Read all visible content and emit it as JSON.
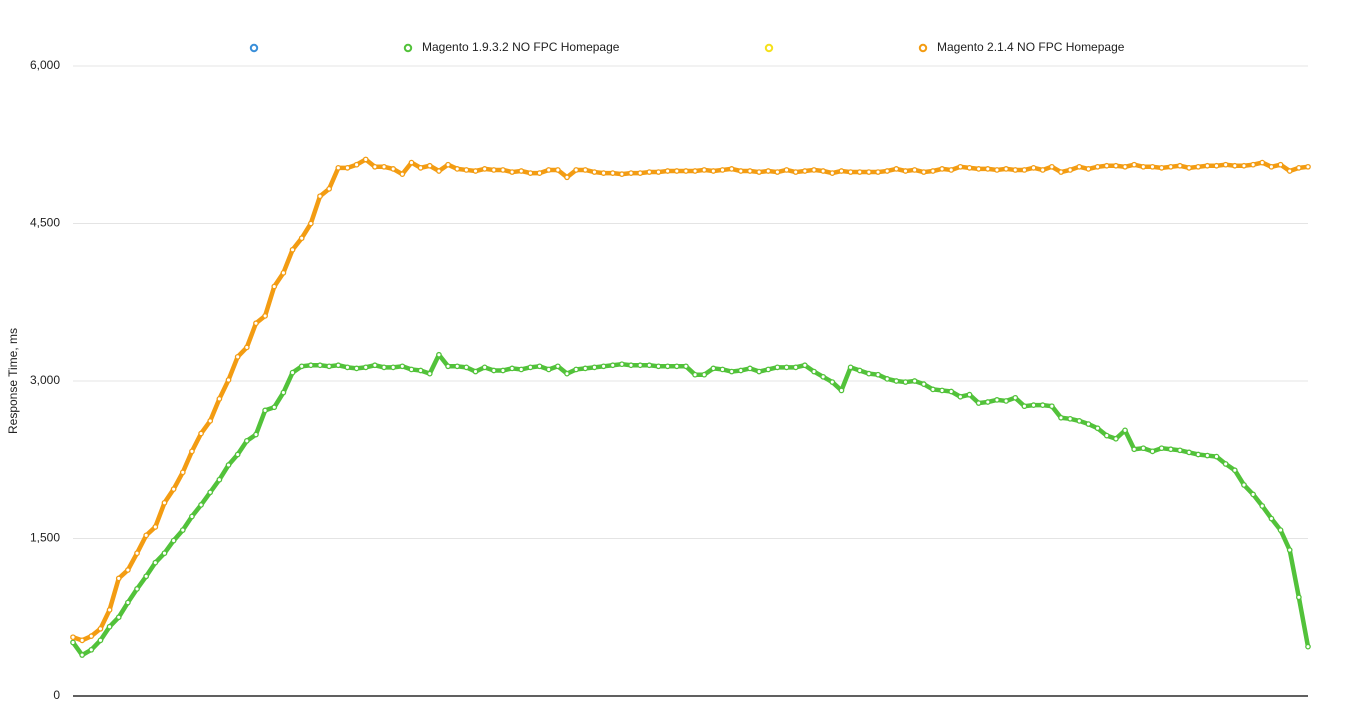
{
  "chart_data": {
    "type": "line",
    "y_label": "Response Time, ms",
    "ylim": [
      0,
      6000
    ],
    "yticks": [
      0,
      {
        "value": 1500,
        "label": "1,500"
      },
      {
        "value": 3000,
        "label": "3,000"
      },
      {
        "value": 4500,
        "label": "4,500"
      },
      {
        "value": 6000,
        "label": "6,000"
      }
    ],
    "grid": true,
    "legend": "top",
    "series": [
      {
        "name": null,
        "color": "#3a8fd9"
      },
      {
        "name": "Magento 1.9.3.2 NO FPC Homepage",
        "color": "#52c23a",
        "values": [
          510,
          390,
          440,
          530,
          660,
          750,
          890,
          1020,
          1140,
          1270,
          1360,
          1480,
          1580,
          1710,
          1820,
          1940,
          2060,
          2200,
          2300,
          2430,
          2490,
          2720,
          2750,
          2890,
          3080,
          3140,
          3150,
          3150,
          3140,
          3150,
          3130,
          3120,
          3130,
          3150,
          3130,
          3130,
          3140,
          3110,
          3100,
          3070,
          3250,
          3140,
          3140,
          3130,
          3090,
          3130,
          3100,
          3100,
          3120,
          3110,
          3130,
          3140,
          3110,
          3140,
          3070,
          3110,
          3120,
          3130,
          3140,
          3150,
          3160,
          3150,
          3150,
          3150,
          3140,
          3140,
          3140,
          3140,
          3060,
          3060,
          3120,
          3110,
          3090,
          3100,
          3120,
          3090,
          3110,
          3130,
          3130,
          3130,
          3150,
          3090,
          3040,
          2990,
          2910,
          3130,
          3100,
          3070,
          3060,
          3020,
          3000,
          2990,
          3000,
          2970,
          2920,
          2910,
          2900,
          2850,
          2870,
          2790,
          2800,
          2820,
          2810,
          2840,
          2760,
          2770,
          2770,
          2760,
          2650,
          2640,
          2620,
          2590,
          2550,
          2480,
          2450,
          2530,
          2350,
          2360,
          2330,
          2360,
          2350,
          2340,
          2320,
          2300,
          2290,
          2280,
          2210,
          2150,
          2010,
          1920,
          1810,
          1690,
          1580,
          1390,
          940,
          470
        ]
      },
      {
        "name": null,
        "color": "#f5e11b"
      },
      {
        "name": "Magento 2.1.4 NO FPC Homepage",
        "color": "#f39c12",
        "values": [
          560,
          530,
          570,
          640,
          820,
          1120,
          1200,
          1360,
          1530,
          1610,
          1840,
          1970,
          2130,
          2330,
          2500,
          2620,
          2830,
          3010,
          3230,
          3320,
          3550,
          3620,
          3900,
          4030,
          4250,
          4360,
          4500,
          4760,
          4830,
          5030,
          5030,
          5060,
          5110,
          5040,
          5040,
          5020,
          4970,
          5080,
          5030,
          5050,
          5000,
          5060,
          5020,
          5010,
          5000,
          5020,
          5010,
          5010,
          4990,
          5000,
          4980,
          4980,
          5010,
          5010,
          4940,
          5010,
          5010,
          4990,
          4980,
          4980,
          4970,
          4980,
          4980,
          4990,
          4990,
          5000,
          5000,
          5000,
          5000,
          5010,
          5000,
          5010,
          5020,
          5000,
          5000,
          4990,
          5000,
          4990,
          5010,
          4990,
          5000,
          5010,
          5000,
          4980,
          5000,
          4990,
          4990,
          4990,
          4990,
          5000,
          5020,
          5000,
          5010,
          4990,
          5000,
          5020,
          5010,
          5040,
          5030,
          5020,
          5020,
          5010,
          5020,
          5010,
          5010,
          5030,
          5010,
          5040,
          4990,
          5010,
          5040,
          5020,
          5040,
          5050,
          5050,
          5040,
          5060,
          5040,
          5040,
          5030,
          5040,
          5050,
          5030,
          5040,
          5050,
          5050,
          5060,
          5050,
          5050,
          5060,
          5080,
          5040,
          5060,
          5000,
          5030,
          5040
        ]
      }
    ]
  }
}
